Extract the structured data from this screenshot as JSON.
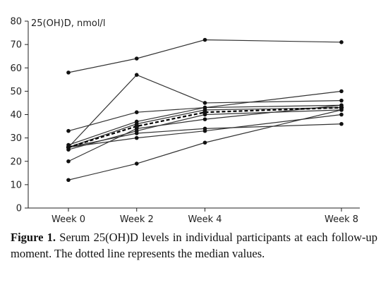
{
  "chart_data": {
    "type": "line",
    "ylabel": "25(OH)D, nmol/l",
    "categories": [
      "Week 0",
      "Week 2",
      "Week 4",
      "Week 8"
    ],
    "x_positions_weeks": [
      0,
      2,
      4,
      8
    ],
    "ylim": [
      0,
      80
    ],
    "yticks": [
      0,
      10,
      20,
      30,
      40,
      50,
      60,
      70,
      80
    ],
    "series": [
      {
        "values": [
          58,
          64,
          72,
          71
        ],
        "style": "solid"
      },
      {
        "values": [
          26,
          57,
          45,
          46
        ],
        "style": "solid"
      },
      {
        "values": [
          33,
          41,
          43,
          44
        ],
        "style": "solid"
      },
      {
        "values": [
          27,
          37,
          43,
          50
        ],
        "style": "solid"
      },
      {
        "values": [
          26,
          36,
          42,
          43
        ],
        "style": "solid"
      },
      {
        "values": [
          25,
          33,
          40,
          42
        ],
        "style": "solid"
      },
      {
        "values": [
          26,
          32,
          34,
          36
        ],
        "style": "solid"
      },
      {
        "values": [
          26,
          30,
          33,
          40
        ],
        "style": "solid"
      },
      {
        "values": [
          20,
          34,
          38,
          44
        ],
        "style": "solid"
      },
      {
        "values": [
          12,
          19,
          28,
          42
        ],
        "style": "solid"
      },
      {
        "values": [
          26,
          35,
          41,
          43
        ],
        "style": "dashed",
        "role": "median"
      }
    ],
    "colors": {
      "line": "#333333",
      "marker": "#111111",
      "axis": "#222222"
    }
  },
  "caption": {
    "label": "Figure 1.",
    "text": " Serum 25(OH)D levels in individual participants at each follow-up moment. The dotted line represents the median values."
  }
}
